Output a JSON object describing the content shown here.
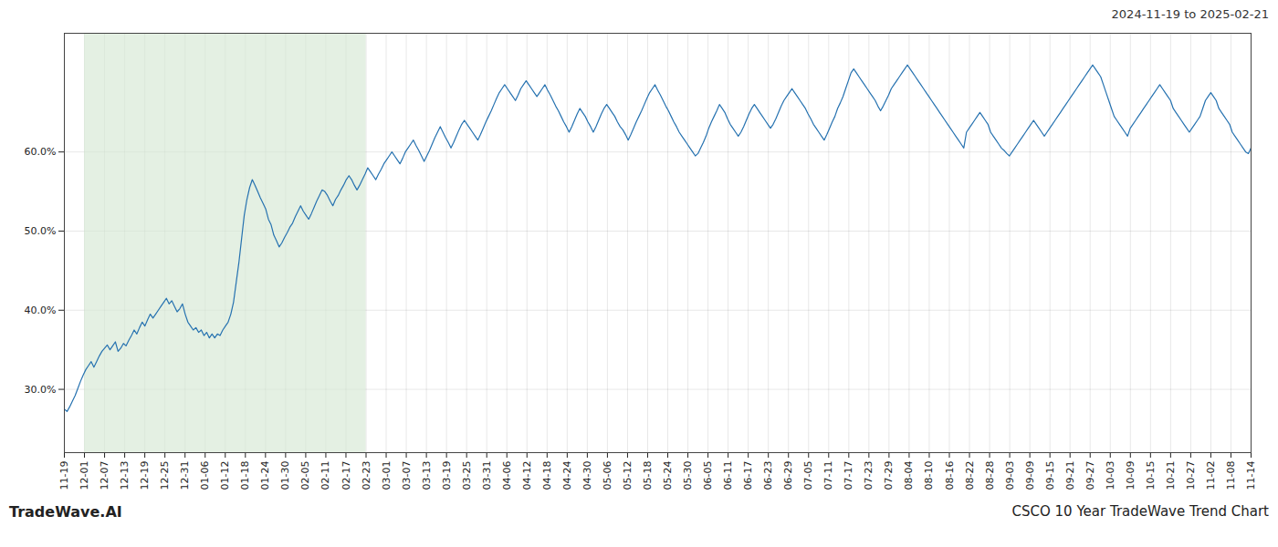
{
  "chart_data": {
    "type": "line",
    "title": "CSCO 10 Year TradeWave Trend Chart",
    "subtitle": "2024-11-19 to 2025-02-21",
    "annotations": [
      "TradeWave.AI"
    ],
    "color": "#2672B0",
    "grid": true,
    "xlim": [
      0,
      59
    ],
    "xticks": [
      {
        "value": 0,
        "label": "11-19"
      },
      {
        "value": 1,
        "label": "12-01"
      },
      {
        "value": 2,
        "label": "12-07"
      },
      {
        "value": 3,
        "label": "12-13"
      },
      {
        "value": 4,
        "label": "12-19"
      },
      {
        "value": 5,
        "label": "12-25"
      },
      {
        "value": 6,
        "label": "12-31"
      },
      {
        "value": 7,
        "label": "01-06"
      },
      {
        "value": 8,
        "label": "01-12"
      },
      {
        "value": 9,
        "label": "01-18"
      },
      {
        "value": 10,
        "label": "01-24"
      },
      {
        "value": 11,
        "label": "01-30"
      },
      {
        "value": 12,
        "label": "02-05"
      },
      {
        "value": 13,
        "label": "02-11"
      },
      {
        "value": 14,
        "label": "02-17"
      },
      {
        "value": 15,
        "label": "02-23"
      },
      {
        "value": 16,
        "label": "03-01"
      },
      {
        "value": 17,
        "label": "03-07"
      },
      {
        "value": 18,
        "label": "03-13"
      },
      {
        "value": 19,
        "label": "03-19"
      },
      {
        "value": 20,
        "label": "03-25"
      },
      {
        "value": 21,
        "label": "03-31"
      },
      {
        "value": 22,
        "label": "04-06"
      },
      {
        "value": 23,
        "label": "04-12"
      },
      {
        "value": 24,
        "label": "04-18"
      },
      {
        "value": 25,
        "label": "04-24"
      },
      {
        "value": 26,
        "label": "04-30"
      },
      {
        "value": 27,
        "label": "05-06"
      },
      {
        "value": 28,
        "label": "05-12"
      },
      {
        "value": 29,
        "label": "05-18"
      },
      {
        "value": 30,
        "label": "05-24"
      },
      {
        "value": 31,
        "label": "05-30"
      },
      {
        "value": 32,
        "label": "06-05"
      },
      {
        "value": 33,
        "label": "06-11"
      },
      {
        "value": 34,
        "label": "06-17"
      },
      {
        "value": 35,
        "label": "06-23"
      },
      {
        "value": 36,
        "label": "06-29"
      },
      {
        "value": 37,
        "label": "07-05"
      },
      {
        "value": 38,
        "label": "07-11"
      },
      {
        "value": 39,
        "label": "07-17"
      },
      {
        "value": 40,
        "label": "07-23"
      },
      {
        "value": 41,
        "label": "07-29"
      },
      {
        "value": 42,
        "label": "08-04"
      },
      {
        "value": 43,
        "label": "08-10"
      },
      {
        "value": 44,
        "label": "08-16"
      },
      {
        "value": 45,
        "label": "08-22"
      },
      {
        "value": 46,
        "label": "08-28"
      },
      {
        "value": 47,
        "label": "09-03"
      },
      {
        "value": 48,
        "label": "09-09"
      },
      {
        "value": 49,
        "label": "09-15"
      },
      {
        "value": 50,
        "label": "09-21"
      },
      {
        "value": 51,
        "label": "09-27"
      },
      {
        "value": 52,
        "label": "10-03"
      },
      {
        "value": 53,
        "label": "10-09"
      },
      {
        "value": 54,
        "label": "10-15"
      },
      {
        "value": 55,
        "label": "10-21"
      },
      {
        "value": 56,
        "label": "10-27"
      },
      {
        "value": 57,
        "label": "11-02"
      },
      {
        "value": 58,
        "label": "11-08"
      },
      {
        "value": 59,
        "label": "11-14"
      }
    ],
    "ylim": [
      22,
      75
    ],
    "yticks": [
      {
        "value": 30.0,
        "label": "30.0%"
      },
      {
        "value": 40.0,
        "label": "40.0%"
      },
      {
        "value": 50.0,
        "label": "50.0%"
      },
      {
        "value": 60.0,
        "label": "60.0%"
      }
    ],
    "shaded_range": {
      "from": "12-01",
      "to": "02-23",
      "color": "#d5e8d4"
    },
    "values": [
      27.5,
      27.2,
      27.8,
      28.5,
      29.2,
      30.1,
      31.0,
      31.8,
      32.5,
      33.0,
      33.5,
      32.8,
      33.5,
      34.2,
      34.8,
      35.2,
      35.6,
      35.0,
      35.5,
      36.0,
      34.8,
      35.2,
      35.8,
      35.5,
      36.2,
      36.8,
      37.5,
      37.0,
      37.8,
      38.5,
      38.0,
      38.8,
      39.5,
      39.0,
      39.5,
      40.0,
      40.5,
      41.0,
      41.5,
      40.8,
      41.2,
      40.5,
      39.8,
      40.2,
      40.8,
      39.5,
      38.5,
      38.0,
      37.5,
      37.8,
      37.2,
      37.5,
      36.8,
      37.2,
      36.5,
      37.0,
      36.5,
      37.0,
      36.8,
      37.5,
      38.0,
      38.5,
      39.5,
      41.0,
      43.5,
      46.0,
      49.0,
      52.0,
      54.0,
      55.5,
      56.5,
      55.8,
      55.0,
      54.2,
      53.5,
      52.8,
      51.5,
      50.8,
      49.5,
      48.8,
      48.0,
      48.5,
      49.2,
      49.8,
      50.5,
      51.0,
      51.8,
      52.5,
      53.2,
      52.5,
      52.0,
      51.5,
      52.2,
      53.0,
      53.8,
      54.5,
      55.2,
      55.0,
      54.5,
      53.8,
      53.2,
      54.0,
      54.5,
      55.2,
      55.8,
      56.5,
      57.0,
      56.5,
      55.8,
      55.2,
      55.8,
      56.5,
      57.2,
      58.0,
      57.5,
      57.0,
      56.5,
      57.2,
      57.8,
      58.5,
      59.0,
      59.5,
      60.0,
      59.5,
      59.0,
      58.5,
      59.2,
      60.0,
      60.5,
      61.0,
      61.5,
      60.8,
      60.2,
      59.5,
      58.8,
      59.5,
      60.2,
      61.0,
      61.8,
      62.5,
      63.2,
      62.5,
      61.8,
      61.2,
      60.5,
      61.2,
      62.0,
      62.8,
      63.5,
      64.0,
      63.5,
      63.0,
      62.5,
      62.0,
      61.5,
      62.2,
      63.0,
      63.8,
      64.5,
      65.2,
      66.0,
      66.8,
      67.5,
      68.0,
      68.5,
      68.0,
      67.5,
      67.0,
      66.5,
      67.2,
      68.0,
      68.5,
      69.0,
      68.5,
      68.0,
      67.5,
      67.0,
      67.5,
      68.0,
      68.5,
      67.8,
      67.2,
      66.5,
      65.8,
      65.2,
      64.5,
      63.8,
      63.2,
      62.5,
      63.2,
      64.0,
      64.8,
      65.5,
      65.0,
      64.5,
      63.8,
      63.2,
      62.5,
      63.2,
      64.0,
      64.8,
      65.5,
      66.0,
      65.5,
      65.0,
      64.5,
      63.8,
      63.2,
      62.8,
      62.2,
      61.5,
      62.2,
      63.0,
      63.8,
      64.5,
      65.2,
      66.0,
      66.8,
      67.5,
      68.0,
      68.5,
      67.8,
      67.2,
      66.5,
      65.8,
      65.2,
      64.5,
      63.8,
      63.2,
      62.5,
      62.0,
      61.5,
      61.0,
      60.5,
      60.0,
      59.5,
      59.8,
      60.5,
      61.2,
      62.0,
      63.0,
      63.8,
      64.5,
      65.2,
      66.0,
      65.5,
      65.0,
      64.2,
      63.5,
      63.0,
      62.5,
      62.0,
      62.5,
      63.2,
      64.0,
      64.8,
      65.5,
      66.0,
      65.5,
      65.0,
      64.5,
      64.0,
      63.5,
      63.0,
      63.5,
      64.2,
      65.0,
      65.8,
      66.5,
      67.0,
      67.5,
      68.0,
      67.5,
      67.0,
      66.5,
      66.0,
      65.5,
      64.8,
      64.2,
      63.5,
      63.0,
      62.5,
      62.0,
      61.5,
      62.2,
      63.0,
      63.8,
      64.5,
      65.5,
      66.2,
      67.0,
      68.0,
      69.0,
      70.0,
      70.5,
      70.0,
      69.5,
      69.0,
      68.5,
      68.0,
      67.5,
      67.0,
      66.5,
      65.8,
      65.2,
      65.8,
      66.5,
      67.2,
      68.0,
      68.5,
      69.0,
      69.5,
      70.0,
      70.5,
      71.0,
      70.5,
      70.0,
      69.5,
      69.0,
      68.5,
      68.0,
      67.5,
      67.0,
      66.5,
      66.0,
      65.5,
      65.0,
      64.5,
      64.0,
      63.5,
      63.0,
      62.5,
      62.0,
      61.5,
      61.0,
      60.5,
      62.5,
      63.0,
      63.5,
      64.0,
      64.5,
      65.0,
      64.5,
      64.0,
      63.5,
      62.5,
      62.0,
      61.5,
      61.0,
      60.5,
      60.2,
      59.8,
      59.5,
      60.0,
      60.5,
      61.0,
      61.5,
      62.0,
      62.5,
      63.0,
      63.5,
      64.0,
      63.5,
      63.0,
      62.5,
      62.0,
      62.5,
      63.0,
      63.5,
      64.0,
      64.5,
      65.0,
      65.5,
      66.0,
      66.5,
      67.0,
      67.5,
      68.0,
      68.5,
      69.0,
      69.5,
      70.0,
      70.5,
      71.0,
      70.5,
      70.0,
      69.5,
      68.5,
      67.5,
      66.5,
      65.5,
      64.5,
      64.0,
      63.5,
      63.0,
      62.5,
      62.0,
      63.0,
      63.5,
      64.0,
      64.5,
      65.0,
      65.5,
      66.0,
      66.5,
      67.0,
      67.5,
      68.0,
      68.5,
      68.0,
      67.5,
      67.0,
      66.5,
      65.5,
      65.0,
      64.5,
      64.0,
      63.5,
      63.0,
      62.5,
      63.0,
      63.5,
      64.0,
      64.5,
      65.5,
      66.5,
      67.0,
      67.5,
      67.0,
      66.5,
      65.5,
      65.0,
      64.5,
      64.0,
      63.5,
      62.5,
      62.0,
      61.5,
      61.0,
      60.5,
      60.0,
      59.8,
      60.5
    ]
  }
}
